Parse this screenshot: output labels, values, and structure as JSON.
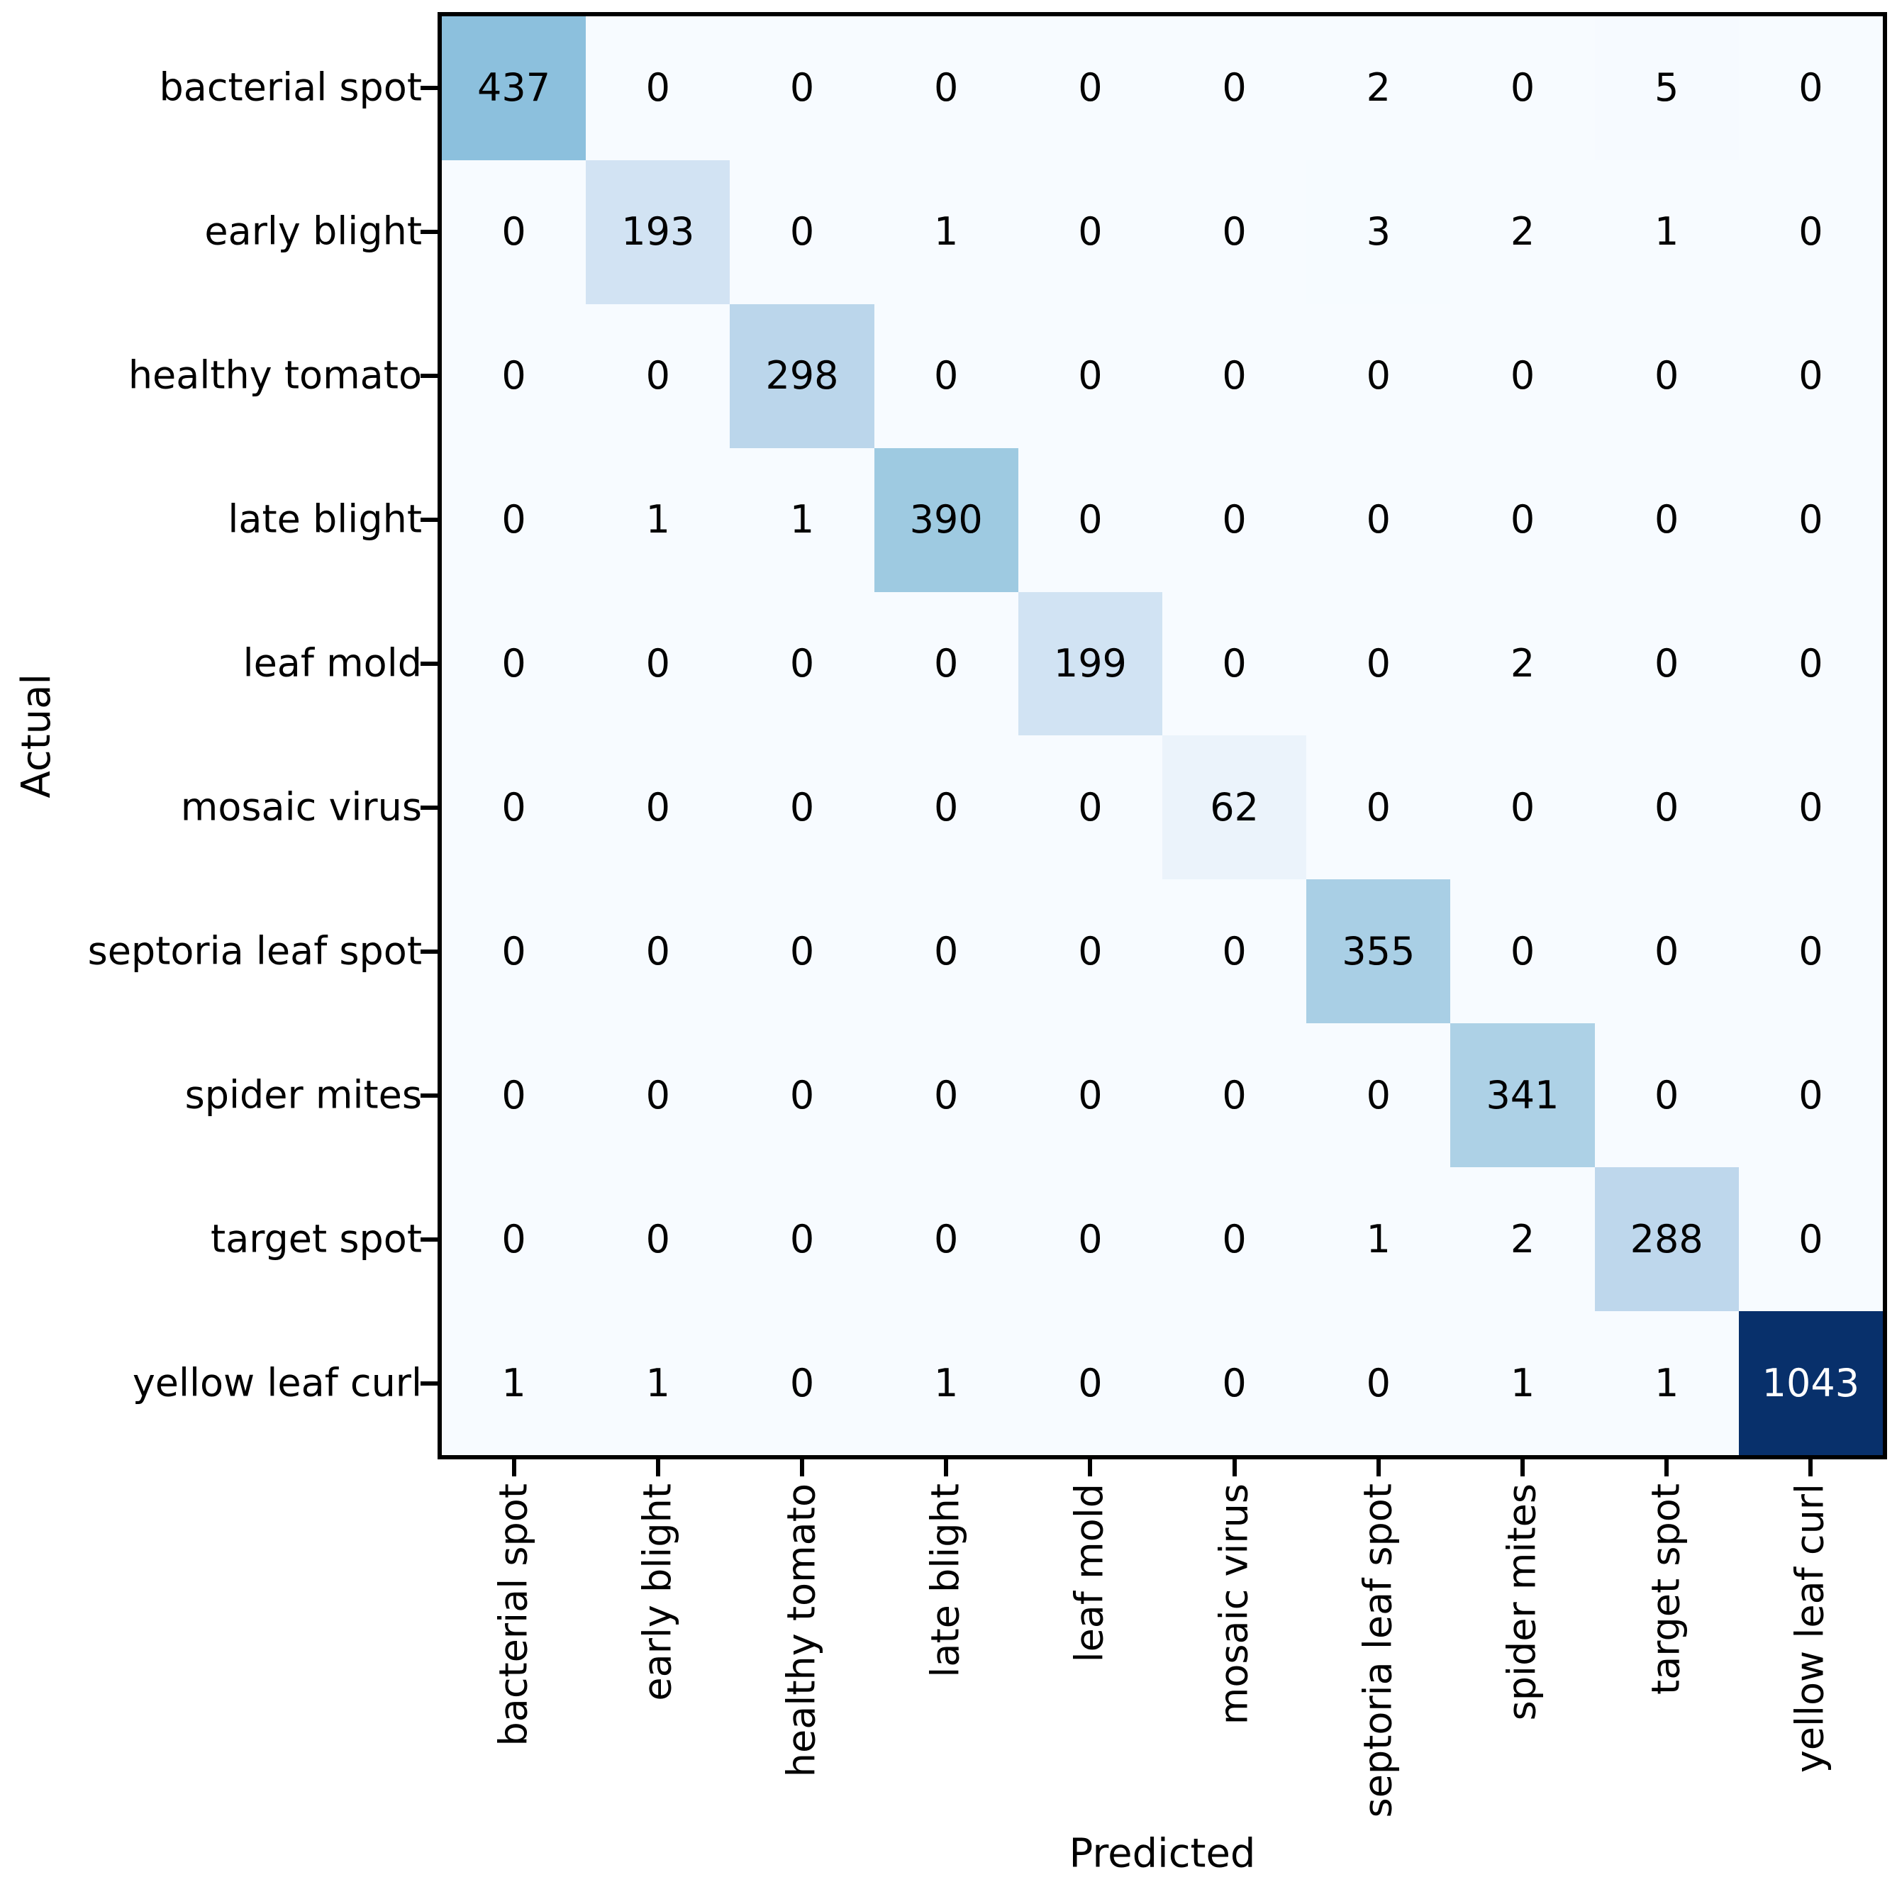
{
  "chart_data": {
    "type": "heatmap",
    "subtype": "confusion-matrix",
    "title": "",
    "xlabel": "Predicted",
    "ylabel": "Actual",
    "categories": [
      "bacterial spot",
      "early blight",
      "healthy tomato",
      "late blight",
      "leaf mold",
      "mosaic virus",
      "septoria leaf spot",
      "spider mites",
      "target spot",
      "yellow leaf curl"
    ],
    "matrix": [
      [
        437,
        0,
        0,
        0,
        0,
        0,
        2,
        0,
        5,
        0
      ],
      [
        0,
        193,
        0,
        1,
        0,
        0,
        3,
        2,
        1,
        0
      ],
      [
        0,
        0,
        298,
        0,
        0,
        0,
        0,
        0,
        0,
        0
      ],
      [
        0,
        1,
        1,
        390,
        0,
        0,
        0,
        0,
        0,
        0
      ],
      [
        0,
        0,
        0,
        0,
        199,
        0,
        0,
        2,
        0,
        0
      ],
      [
        0,
        0,
        0,
        0,
        0,
        62,
        0,
        0,
        0,
        0
      ],
      [
        0,
        0,
        0,
        0,
        0,
        0,
        355,
        0,
        0,
        0
      ],
      [
        0,
        0,
        0,
        0,
        0,
        0,
        0,
        341,
        0,
        0
      ],
      [
        0,
        0,
        0,
        0,
        0,
        0,
        1,
        2,
        288,
        0
      ],
      [
        1,
        1,
        0,
        1,
        0,
        0,
        0,
        1,
        1,
        1043
      ]
    ],
    "colormap": "Blues",
    "vmin": 0,
    "vmax": 1043,
    "colormap_anchors": [
      "#f7fbff",
      "#deebf7",
      "#c6dbef",
      "#9ecae1",
      "#6baed6",
      "#4292c6",
      "#2171b5",
      "#08519c",
      "#08306b"
    ],
    "cell_text_color_dark": "#000000",
    "cell_text_color_light": "#ffffff",
    "axis_color": "#000000",
    "grid": false,
    "legend": "none"
  }
}
